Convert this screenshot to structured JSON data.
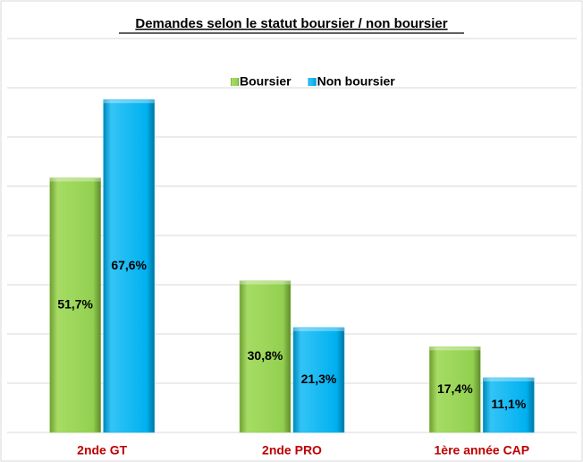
{
  "chart_data": {
    "type": "bar",
    "title": "Demandes selon le statut boursier / non boursier",
    "categories": [
      "2nde GT",
      "2nde PRO",
      "1ère année CAP"
    ],
    "series": [
      {
        "name": "Boursier",
        "color": "#92d050",
        "values": [
          51.7,
          30.8,
          17.4
        ],
        "value_labels": [
          "51,7%",
          "30,8%",
          "17,4%"
        ]
      },
      {
        "name": "Non boursier",
        "color": "#00b0f0",
        "values": [
          67.6,
          21.3,
          11.1
        ],
        "value_labels": [
          "67,6%",
          "21,3%",
          "11,1%"
        ]
      }
    ],
    "ylim": [
      0,
      80
    ],
    "yticks": [
      0,
      10,
      20,
      30,
      40,
      50,
      60,
      70,
      80
    ],
    "grid": true,
    "legend": "top"
  }
}
